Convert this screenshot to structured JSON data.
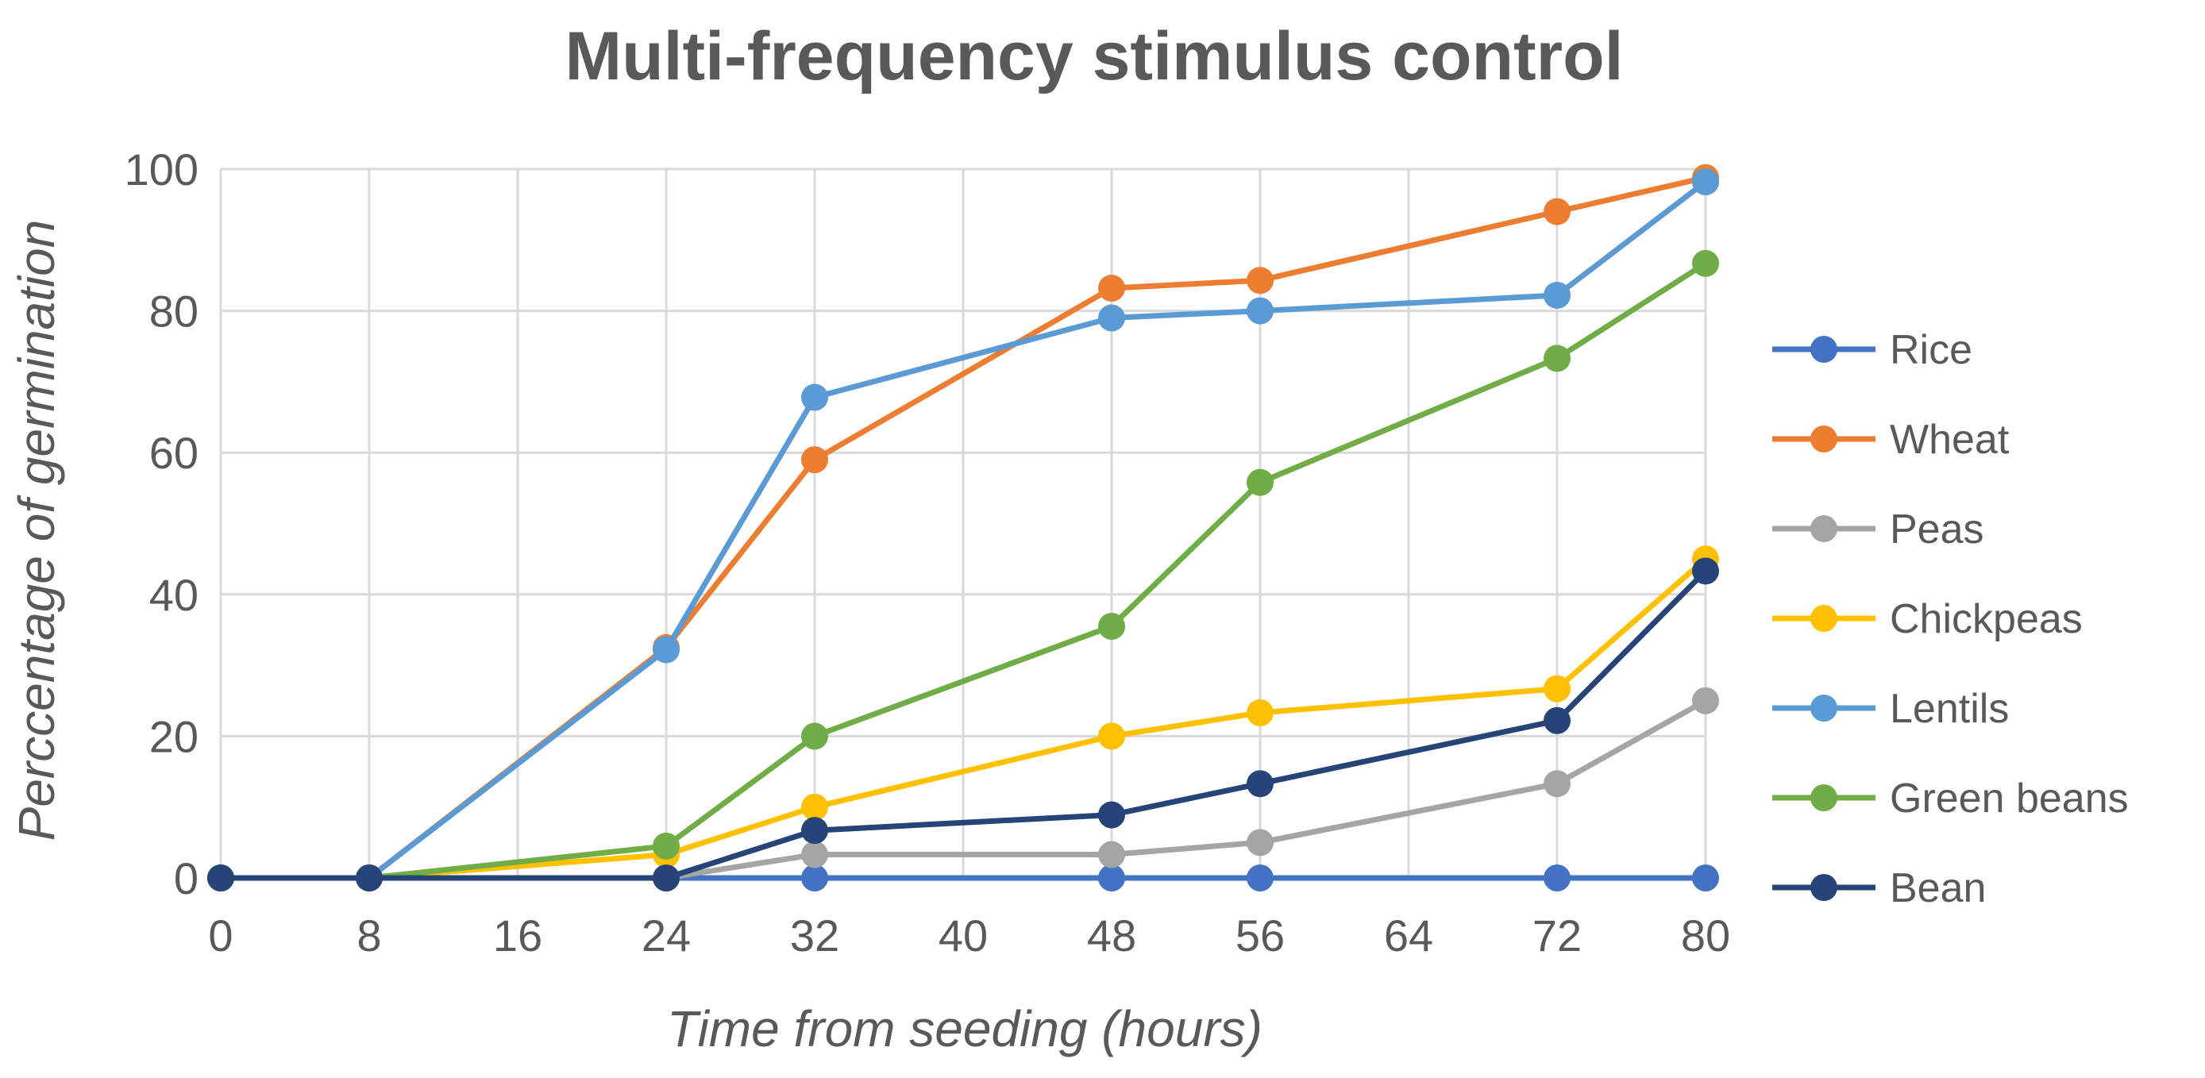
{
  "chart_data": {
    "type": "line",
    "title": "Multi-frequency stimulus control",
    "xlabel": "Time from seeding (hours)",
    "ylabel": "Perccentage of germination",
    "xlim": [
      0,
      80
    ],
    "ylim": [
      0,
      100
    ],
    "x_ticks": [
      0,
      8,
      16,
      24,
      32,
      40,
      48,
      56,
      64,
      72,
      80
    ],
    "y_ticks": [
      0,
      20,
      40,
      60,
      80,
      100
    ],
    "grid": true,
    "legend_position": "right",
    "x": [
      0,
      8,
      24,
      32,
      48,
      56,
      72,
      80
    ],
    "series": [
      {
        "name": "Rice",
        "color": "#4472C4",
        "values": [
          0,
          0,
          0,
          0,
          0,
          0,
          0,
          0
        ]
      },
      {
        "name": "Wheat",
        "color": "#ED7D31",
        "values": [
          0,
          0,
          32.5,
          59,
          83.2,
          84.3,
          94,
          98.8
        ]
      },
      {
        "name": "Peas",
        "color": "#A5A5A5",
        "values": [
          0,
          0,
          0,
          3.3,
          3.3,
          5,
          13.3,
          25
        ]
      },
      {
        "name": "Chickpeas",
        "color": "#FFC000",
        "values": [
          0,
          0,
          3.3,
          10,
          20,
          23.3,
          26.7,
          45
        ]
      },
      {
        "name": "Lentils",
        "color": "#5B9BD5",
        "values": [
          0,
          0,
          32.2,
          67.8,
          79,
          80,
          82.2,
          98.2
        ]
      },
      {
        "name": "Green beans",
        "color": "#70AD47",
        "values": [
          0,
          0,
          4.5,
          20,
          35.5,
          55.8,
          73.3,
          86.7
        ]
      },
      {
        "name": "Bean",
        "color": "#264478",
        "values": [
          0,
          0,
          0,
          6.7,
          8.9,
          13.3,
          22.2,
          43.3
        ]
      }
    ]
  }
}
